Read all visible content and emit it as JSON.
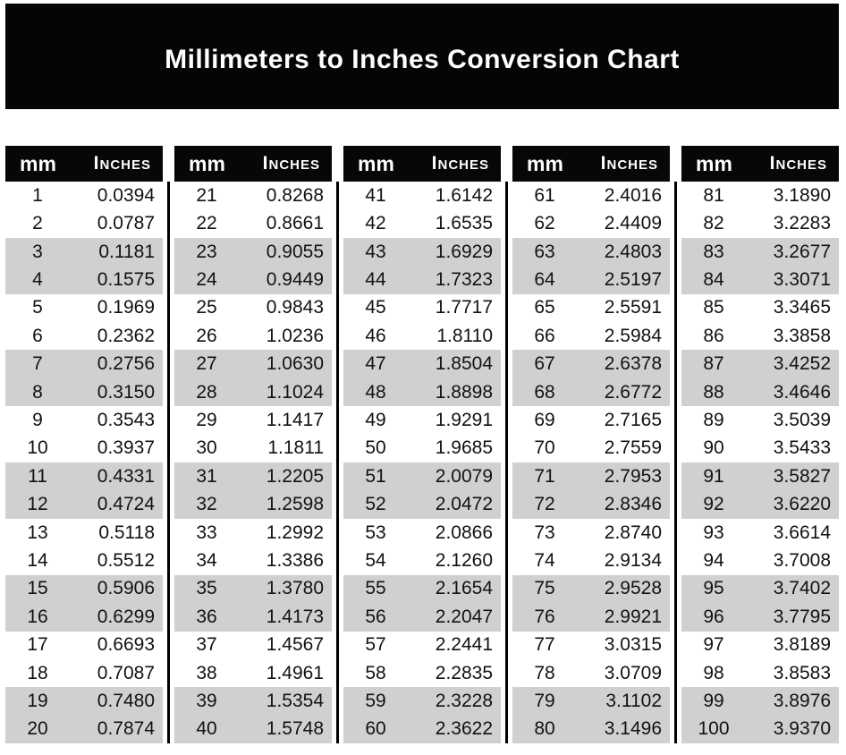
{
  "title": "Millimeters to Inches Conversion Chart",
  "colors": {
    "page_bg": "#ffffff",
    "banner_bg": "#050505",
    "table_header_bg": "#070707",
    "header_text": "#ffffff",
    "stripe_gray": "#d0d0d0",
    "data_text": "#121212",
    "divider": "#000000"
  },
  "chart_data": {
    "type": "table",
    "title": "Millimeters to Inches Conversion Chart",
    "column_headers": [
      "mm",
      "Inches"
    ],
    "layout": "five side-by-side mm/inches tables, rows striped in pairs (2 white, 2 gray), black vertical rules between tables",
    "columns": [
      {
        "rows": [
          [
            "1",
            "0.0394"
          ],
          [
            "2",
            "0.0787"
          ],
          [
            "3",
            "0.1181"
          ],
          [
            "4",
            "0.1575"
          ],
          [
            "5",
            "0.1969"
          ],
          [
            "6",
            "0.2362"
          ],
          [
            "7",
            "0.2756"
          ],
          [
            "8",
            "0.3150"
          ],
          [
            "9",
            "0.3543"
          ],
          [
            "10",
            "0.3937"
          ],
          [
            "11",
            "0.4331"
          ],
          [
            "12",
            "0.4724"
          ],
          [
            "13",
            "0.5118"
          ],
          [
            "14",
            "0.5512"
          ],
          [
            "15",
            "0.5906"
          ],
          [
            "16",
            "0.6299"
          ],
          [
            "17",
            "0.6693"
          ],
          [
            "18",
            "0.7087"
          ],
          [
            "19",
            "0.7480"
          ],
          [
            "20",
            "0.7874"
          ]
        ]
      },
      {
        "rows": [
          [
            "21",
            "0.8268"
          ],
          [
            "22",
            "0.8661"
          ],
          [
            "23",
            "0.9055"
          ],
          [
            "24",
            "0.9449"
          ],
          [
            "25",
            "0.9843"
          ],
          [
            "26",
            "1.0236"
          ],
          [
            "27",
            "1.0630"
          ],
          [
            "28",
            "1.1024"
          ],
          [
            "29",
            "1.1417"
          ],
          [
            "30",
            "1.1811"
          ],
          [
            "31",
            "1.2205"
          ],
          [
            "32",
            "1.2598"
          ],
          [
            "33",
            "1.2992"
          ],
          [
            "34",
            "1.3386"
          ],
          [
            "35",
            "1.3780"
          ],
          [
            "36",
            "1.4173"
          ],
          [
            "37",
            "1.4567"
          ],
          [
            "38",
            "1.4961"
          ],
          [
            "39",
            "1.5354"
          ],
          [
            "40",
            "1.5748"
          ]
        ]
      },
      {
        "rows": [
          [
            "41",
            "1.6142"
          ],
          [
            "42",
            "1.6535"
          ],
          [
            "43",
            "1.6929"
          ],
          [
            "44",
            "1.7323"
          ],
          [
            "45",
            "1.7717"
          ],
          [
            "46",
            "1.8110"
          ],
          [
            "47",
            "1.8504"
          ],
          [
            "48",
            "1.8898"
          ],
          [
            "49",
            "1.9291"
          ],
          [
            "50",
            "1.9685"
          ],
          [
            "51",
            "2.0079"
          ],
          [
            "52",
            "2.0472"
          ],
          [
            "53",
            "2.0866"
          ],
          [
            "54",
            "2.1260"
          ],
          [
            "55",
            "2.1654"
          ],
          [
            "56",
            "2.2047"
          ],
          [
            "57",
            "2.2441"
          ],
          [
            "58",
            "2.2835"
          ],
          [
            "59",
            "2.3228"
          ],
          [
            "60",
            "2.3622"
          ]
        ]
      },
      {
        "rows": [
          [
            "61",
            "2.4016"
          ],
          [
            "62",
            "2.4409"
          ],
          [
            "63",
            "2.4803"
          ],
          [
            "64",
            "2.5197"
          ],
          [
            "65",
            "2.5591"
          ],
          [
            "66",
            "2.5984"
          ],
          [
            "67",
            "2.6378"
          ],
          [
            "68",
            "2.6772"
          ],
          [
            "69",
            "2.7165"
          ],
          [
            "70",
            "2.7559"
          ],
          [
            "71",
            "2.7953"
          ],
          [
            "72",
            "2.8346"
          ],
          [
            "73",
            "2.8740"
          ],
          [
            "74",
            "2.9134"
          ],
          [
            "75",
            "2.9528"
          ],
          [
            "76",
            "2.9921"
          ],
          [
            "77",
            "3.0315"
          ],
          [
            "78",
            "3.0709"
          ],
          [
            "79",
            "3.1102"
          ],
          [
            "80",
            "3.1496"
          ]
        ]
      },
      {
        "rows": [
          [
            "81",
            "3.1890"
          ],
          [
            "82",
            "3.2283"
          ],
          [
            "83",
            "3.2677"
          ],
          [
            "84",
            "3.3071"
          ],
          [
            "85",
            "3.3465"
          ],
          [
            "86",
            "3.3858"
          ],
          [
            "87",
            "3.4252"
          ],
          [
            "88",
            "3.4646"
          ],
          [
            "89",
            "3.5039"
          ],
          [
            "90",
            "3.5433"
          ],
          [
            "91",
            "3.5827"
          ],
          [
            "92",
            "3.6220"
          ],
          [
            "93",
            "3.6614"
          ],
          [
            "94",
            "3.7008"
          ],
          [
            "95",
            "3.7402"
          ],
          [
            "96",
            "3.7795"
          ],
          [
            "97",
            "3.8189"
          ],
          [
            "98",
            "3.8583"
          ],
          [
            "99",
            "3.8976"
          ],
          [
            "100",
            "3.9370"
          ]
        ]
      }
    ]
  }
}
